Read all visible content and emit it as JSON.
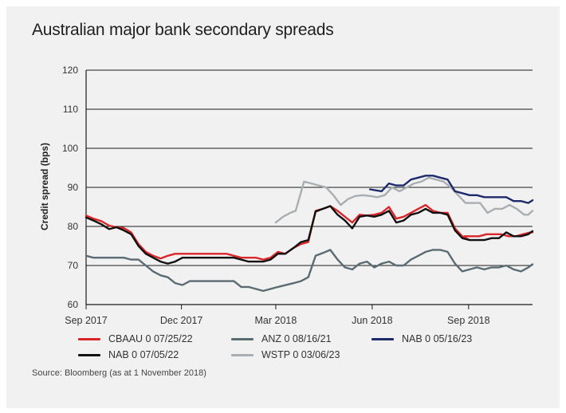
{
  "chart_data": {
    "type": "line",
    "title": "Australian major bank secondary spreads",
    "ylabel": "Credit spread (bps)",
    "xlabel": "",
    "ylim": [
      60,
      120
    ],
    "yticks": [
      60,
      70,
      80,
      90,
      100,
      110,
      120
    ],
    "xlim": [
      "2017-09-01",
      "2018-11-01"
    ],
    "xticks": [
      {
        "label": "Sep 2017",
        "date": "2017-09-01"
      },
      {
        "label": "Dec 2017",
        "date": "2017-12-01"
      },
      {
        "label": "Mar 2018",
        "date": "2018-03-01"
      },
      {
        "label": "Jun 2018",
        "date": "2018-06-01"
      },
      {
        "label": "Sep 2018",
        "date": "2018-09-01"
      }
    ],
    "grid": "horizontal",
    "legend_position": "bottom",
    "series": [
      {
        "name": "CBAAU 0 07/25/22",
        "color": "#d9262b",
        "points": [
          [
            "2017-09-01",
            82.8
          ],
          [
            "2017-09-08",
            82.0
          ],
          [
            "2017-09-16",
            81.3
          ],
          [
            "2017-09-23",
            80.2
          ],
          [
            "2017-09-30",
            79.8
          ],
          [
            "2017-10-07",
            79.6
          ],
          [
            "2017-10-14",
            78.5
          ],
          [
            "2017-10-21",
            75.5
          ],
          [
            "2017-10-28",
            73.5
          ],
          [
            "2017-11-04",
            72.5
          ],
          [
            "2017-11-11",
            71.8
          ],
          [
            "2017-11-18",
            72.5
          ],
          [
            "2017-11-25",
            73.0
          ],
          [
            "2017-12-02",
            73.0
          ],
          [
            "2017-12-16",
            73.0
          ],
          [
            "2017-12-30",
            73.0
          ],
          [
            "2018-01-13",
            73.0
          ],
          [
            "2018-01-20",
            72.5
          ],
          [
            "2018-01-27",
            72.0
          ],
          [
            "2018-02-03",
            72.0
          ],
          [
            "2018-02-10",
            72.0
          ],
          [
            "2018-02-17",
            71.5
          ],
          [
            "2018-02-24",
            72.0
          ],
          [
            "2018-03-03",
            73.5
          ],
          [
            "2018-03-10",
            73.0
          ],
          [
            "2018-03-18",
            74.5
          ],
          [
            "2018-03-25",
            75.5
          ],
          [
            "2018-04-01",
            76.0
          ],
          [
            "2018-04-08",
            84.0
          ],
          [
            "2018-04-15",
            84.5
          ],
          [
            "2018-04-22",
            85.2
          ],
          [
            "2018-04-29",
            84.0
          ],
          [
            "2018-05-06",
            82.5
          ],
          [
            "2018-05-13",
            81.0
          ],
          [
            "2018-05-20",
            83.0
          ],
          [
            "2018-05-27",
            82.8
          ],
          [
            "2018-06-03",
            83.0
          ],
          [
            "2018-06-10",
            83.5
          ],
          [
            "2018-06-17",
            85.0
          ],
          [
            "2018-06-24",
            82.0
          ],
          [
            "2018-07-01",
            82.5
          ],
          [
            "2018-07-08",
            83.5
          ],
          [
            "2018-07-15",
            84.5
          ],
          [
            "2018-07-22",
            85.5
          ],
          [
            "2018-07-29",
            84.0
          ],
          [
            "2018-08-05",
            83.5
          ],
          [
            "2018-08-12",
            83.5
          ],
          [
            "2018-08-19",
            79.5
          ],
          [
            "2018-08-26",
            77.5
          ],
          [
            "2018-09-02",
            76.5
          ]
        ]
      },
      {
        "name": "CBAAU 0 07/25/22 (late)",
        "color": "#d9262b",
        "legend": false,
        "points": [
          [
            "2018-08-28",
            77.5
          ],
          [
            "2018-09-11",
            77.5
          ],
          [
            "2018-09-18",
            78.0
          ],
          [
            "2018-10-02",
            78.0
          ],
          [
            "2018-10-09",
            77.5
          ],
          [
            "2018-10-16",
            77.5
          ],
          [
            "2018-10-23",
            78.0
          ],
          [
            "2018-10-30",
            78.5
          ],
          [
            "2018-11-01",
            78.5
          ]
        ]
      },
      {
        "name": "ANZ 0 08/16/21",
        "color": "#5b6b72",
        "points": [
          [
            "2017-09-01",
            72.5
          ],
          [
            "2017-09-08",
            72.0
          ],
          [
            "2017-09-23",
            72.0
          ],
          [
            "2017-10-07",
            72.0
          ],
          [
            "2017-10-14",
            71.5
          ],
          [
            "2017-10-21",
            71.5
          ],
          [
            "2017-10-28",
            70.0
          ],
          [
            "2017-11-04",
            68.5
          ],
          [
            "2017-11-11",
            67.5
          ],
          [
            "2017-11-18",
            67.0
          ],
          [
            "2017-11-25",
            65.5
          ],
          [
            "2017-12-02",
            65.0
          ],
          [
            "2017-12-09",
            66.0
          ],
          [
            "2018-01-20",
            66.0
          ],
          [
            "2018-01-27",
            64.5
          ],
          [
            "2018-02-03",
            64.5
          ],
          [
            "2018-02-17",
            63.5
          ],
          [
            "2018-03-03",
            64.5
          ],
          [
            "2018-03-18",
            65.5
          ],
          [
            "2018-03-25",
            66.0
          ],
          [
            "2018-04-01",
            67.0
          ],
          [
            "2018-04-08",
            72.5
          ],
          [
            "2018-04-15",
            73.2
          ],
          [
            "2018-04-22",
            74.0
          ],
          [
            "2018-04-29",
            71.5
          ],
          [
            "2018-05-06",
            69.5
          ],
          [
            "2018-05-13",
            69.0
          ],
          [
            "2018-05-20",
            70.5
          ],
          [
            "2018-05-27",
            71.0
          ],
          [
            "2018-06-03",
            69.5
          ],
          [
            "2018-06-10",
            70.5
          ],
          [
            "2018-06-17",
            71.0
          ],
          [
            "2018-06-24",
            70.0
          ],
          [
            "2018-07-01",
            70.0
          ],
          [
            "2018-07-08",
            71.5
          ],
          [
            "2018-07-15",
            72.5
          ],
          [
            "2018-07-22",
            73.5
          ],
          [
            "2018-07-29",
            74.0
          ],
          [
            "2018-08-05",
            74.0
          ],
          [
            "2018-08-12",
            73.5
          ],
          [
            "2018-08-19",
            70.5
          ],
          [
            "2018-08-26",
            68.5
          ],
          [
            "2018-09-02",
            69.0
          ],
          [
            "2018-09-09",
            69.5
          ],
          [
            "2018-09-16",
            69.0
          ],
          [
            "2018-09-23",
            69.5
          ],
          [
            "2018-09-30",
            69.5
          ],
          [
            "2018-10-07",
            70.0
          ],
          [
            "2018-10-14",
            69.0
          ],
          [
            "2018-10-21",
            68.5
          ],
          [
            "2018-10-28",
            69.5
          ],
          [
            "2018-11-01",
            70.3
          ]
        ]
      },
      {
        "name": "NAB 0 05/16/23",
        "color": "#1f2a6b",
        "points": [
          [
            "2018-05-30",
            89.5
          ],
          [
            "2018-06-10",
            89.0
          ],
          [
            "2018-06-17",
            91.0
          ],
          [
            "2018-06-24",
            90.5
          ],
          [
            "2018-07-01",
            90.5
          ],
          [
            "2018-07-08",
            92.0
          ],
          [
            "2018-07-15",
            92.5
          ],
          [
            "2018-07-22",
            93.0
          ],
          [
            "2018-07-29",
            93.0
          ],
          [
            "2018-08-05",
            92.5
          ],
          [
            "2018-08-12",
            92.0
          ],
          [
            "2018-08-19",
            89.0
          ],
          [
            "2018-08-26",
            88.5
          ],
          [
            "2018-09-02",
            88.0
          ],
          [
            "2018-09-09",
            88.0
          ],
          [
            "2018-09-16",
            87.5
          ],
          [
            "2018-10-07",
            87.5
          ],
          [
            "2018-10-14",
            86.5
          ],
          [
            "2018-10-21",
            86.5
          ],
          [
            "2018-10-28",
            86.0
          ],
          [
            "2018-11-01",
            86.7
          ]
        ]
      },
      {
        "name": "NAB 0 07/05/22",
        "color": "#111111",
        "points": [
          [
            "2017-09-01",
            82.3
          ],
          [
            "2017-09-08",
            81.5
          ],
          [
            "2017-09-16",
            80.5
          ],
          [
            "2017-09-23",
            79.3
          ],
          [
            "2017-09-30",
            79.8
          ],
          [
            "2017-10-07",
            79.0
          ],
          [
            "2017-10-14",
            78.0
          ],
          [
            "2017-10-21",
            75.0
          ],
          [
            "2017-10-28",
            73.0
          ],
          [
            "2017-11-04",
            72.0
          ],
          [
            "2017-11-11",
            71.0
          ],
          [
            "2017-11-18",
            70.5
          ],
          [
            "2017-11-25",
            71.0
          ],
          [
            "2017-12-02",
            72.0
          ],
          [
            "2017-12-16",
            72.0
          ],
          [
            "2018-01-13",
            72.0
          ],
          [
            "2018-01-20",
            72.0
          ],
          [
            "2018-01-27",
            71.5
          ],
          [
            "2018-02-03",
            71.0
          ],
          [
            "2018-02-17",
            71.0
          ],
          [
            "2018-02-24",
            71.5
          ],
          [
            "2018-03-03",
            73.0
          ],
          [
            "2018-03-10",
            73.0
          ],
          [
            "2018-03-18",
            74.5
          ],
          [
            "2018-03-25",
            76.0
          ],
          [
            "2018-04-01",
            76.5
          ],
          [
            "2018-04-08",
            83.8
          ],
          [
            "2018-04-15",
            84.5
          ],
          [
            "2018-04-22",
            85.2
          ],
          [
            "2018-04-29",
            83.0
          ],
          [
            "2018-05-06",
            81.5
          ],
          [
            "2018-05-13",
            79.5
          ],
          [
            "2018-05-20",
            82.5
          ],
          [
            "2018-05-27",
            82.8
          ],
          [
            "2018-06-03",
            82.5
          ],
          [
            "2018-06-10",
            83.0
          ],
          [
            "2018-06-17",
            84.0
          ],
          [
            "2018-06-24",
            81.0
          ],
          [
            "2018-07-01",
            81.5
          ],
          [
            "2018-07-08",
            83.0
          ],
          [
            "2018-07-15",
            83.5
          ],
          [
            "2018-07-22",
            84.5
          ],
          [
            "2018-07-29",
            83.5
          ],
          [
            "2018-08-05",
            83.5
          ],
          [
            "2018-08-12",
            83.0
          ],
          [
            "2018-08-19",
            79.0
          ],
          [
            "2018-08-26",
            77.0
          ],
          [
            "2018-09-02",
            76.5
          ],
          [
            "2018-09-16",
            76.5
          ],
          [
            "2018-09-23",
            77.0
          ],
          [
            "2018-09-30",
            77.0
          ],
          [
            "2018-10-07",
            78.5
          ],
          [
            "2018-10-14",
            77.5
          ],
          [
            "2018-10-21",
            77.5
          ],
          [
            "2018-10-28",
            78.0
          ],
          [
            "2018-11-01",
            78.8
          ]
        ]
      },
      {
        "name": "WSTP 0 03/06/23",
        "color": "#a9aeb1",
        "points": [
          [
            "2018-03-01",
            81.0
          ],
          [
            "2018-03-08",
            82.5
          ],
          [
            "2018-03-15",
            83.5
          ],
          [
            "2018-03-20",
            84.0
          ],
          [
            "2018-03-28",
            91.5
          ],
          [
            "2018-04-04",
            91.0
          ],
          [
            "2018-04-11",
            90.5
          ],
          [
            "2018-04-18",
            90.0
          ],
          [
            "2018-04-25",
            88.0
          ],
          [
            "2018-05-02",
            85.5
          ],
          [
            "2018-05-09",
            87.0
          ],
          [
            "2018-05-16",
            87.8
          ],
          [
            "2018-05-23",
            88.0
          ],
          [
            "2018-05-30",
            87.8
          ],
          [
            "2018-06-06",
            87.5
          ],
          [
            "2018-06-13",
            88.0
          ],
          [
            "2018-06-20",
            90.0
          ],
          [
            "2018-06-27",
            89.0
          ],
          [
            "2018-07-04",
            90.0
          ],
          [
            "2018-07-11",
            91.0
          ],
          [
            "2018-07-18",
            91.5
          ],
          [
            "2018-07-25",
            92.5
          ],
          [
            "2018-08-01",
            92.0
          ],
          [
            "2018-08-08",
            91.5
          ],
          [
            "2018-08-15",
            90.0
          ],
          [
            "2018-08-22",
            88.0
          ],
          [
            "2018-08-29",
            86.0
          ],
          [
            "2018-09-05",
            86.0
          ],
          [
            "2018-09-12",
            86.0
          ],
          [
            "2018-09-19",
            83.5
          ],
          [
            "2018-09-26",
            84.5
          ],
          [
            "2018-10-03",
            84.5
          ],
          [
            "2018-10-10",
            85.5
          ],
          [
            "2018-10-17",
            84.5
          ],
          [
            "2018-10-24",
            83.0
          ],
          [
            "2018-10-28",
            83.0
          ],
          [
            "2018-11-01",
            84.0
          ]
        ]
      }
    ],
    "legend": [
      {
        "label": "CBAAU 0 07/25/22",
        "color": "#d9262b"
      },
      {
        "label": "ANZ 0 08/16/21",
        "color": "#5b6b72"
      },
      {
        "label": "NAB 0 05/16/23",
        "color": "#1f2a6b"
      },
      {
        "label": "NAB 0 07/05/22",
        "color": "#111111"
      },
      {
        "label": "WSTP 0 03/06/23",
        "color": "#a9aeb1"
      }
    ]
  },
  "source": "Source: Bloomberg (as at 1 November 2018)"
}
